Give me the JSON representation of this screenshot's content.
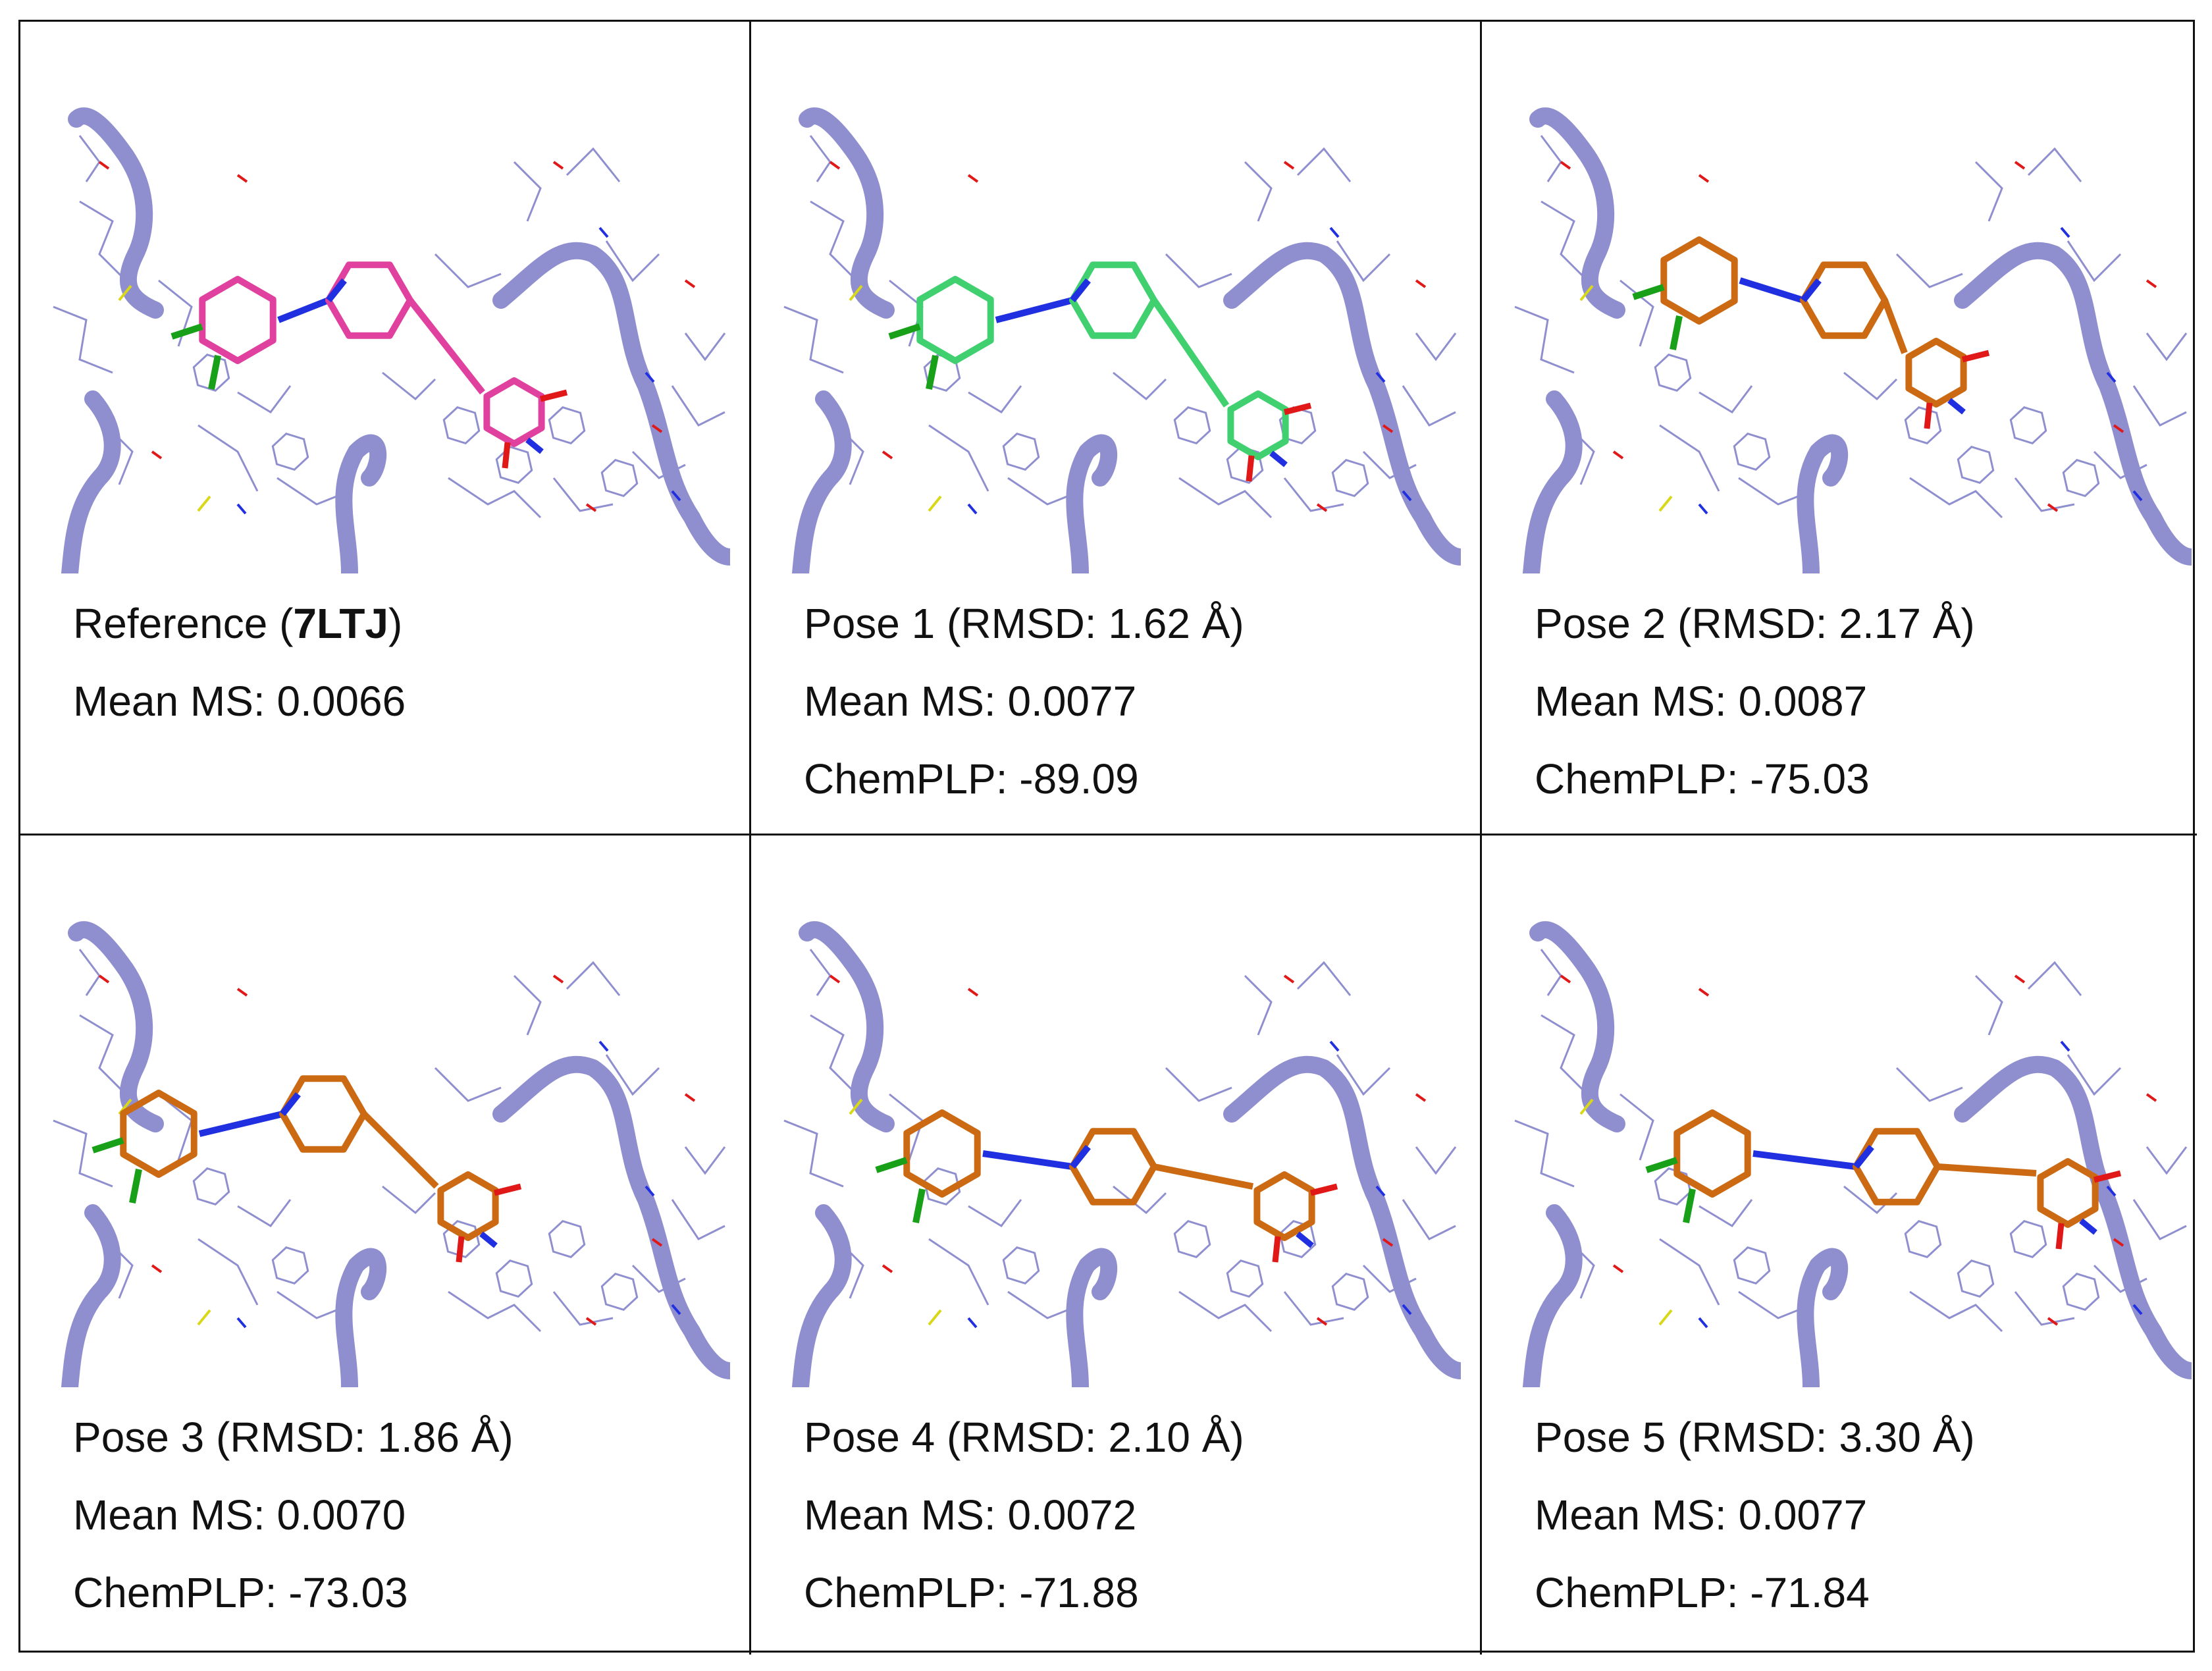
{
  "colors": {
    "protein": "#8f8fd0",
    "reference_ligand": "#e0409e",
    "pose1_ligand": "#40d070",
    "pose_ligand": "#cc6a14",
    "nitrogen": "#2030e0",
    "oxygen": "#e01818",
    "chlorine": "#18a018",
    "sulfur": "#d8d818"
  },
  "panels": [
    {
      "title_prefix": "Reference (",
      "title_bold": "7LTJ",
      "title_suffix": ")",
      "mean_ms": "Mean MS: 0.0066",
      "chemplp": "",
      "ligand_color": "#e0409e"
    },
    {
      "title_prefix": "Pose 1 (RMSD: 1.62 Å)",
      "title_bold": "",
      "title_suffix": "",
      "mean_ms": "Mean MS: 0.0077",
      "chemplp": "ChemPLP: -89.09",
      "ligand_color": "#40d070"
    },
    {
      "title_prefix": "Pose 2 (RMSD: 2.17 Å)",
      "title_bold": "",
      "title_suffix": "",
      "mean_ms": "Mean MS: 0.0087",
      "chemplp": "ChemPLP: -75.03",
      "ligand_color": "#cc6a14"
    },
    {
      "title_prefix": "Pose 3 (RMSD: 1.86 Å)",
      "title_bold": "",
      "title_suffix": "",
      "mean_ms": "Mean MS: 0.0070",
      "chemplp": "ChemPLP: -73.03",
      "ligand_color": "#cc6a14"
    },
    {
      "title_prefix": "Pose 4 (RMSD: 2.10 Å)",
      "title_bold": "",
      "title_suffix": "",
      "mean_ms": "Mean MS: 0.0072",
      "chemplp": "ChemPLP: -71.88",
      "ligand_color": "#cc6a14"
    },
    {
      "title_prefix": "Pose 5 (RMSD: 3.30 Å)",
      "title_bold": "",
      "title_suffix": "",
      "mean_ms": "Mean MS: 0.0077",
      "chemplp": "ChemPLP: -71.84",
      "ligand_color": "#cc6a14"
    }
  ]
}
